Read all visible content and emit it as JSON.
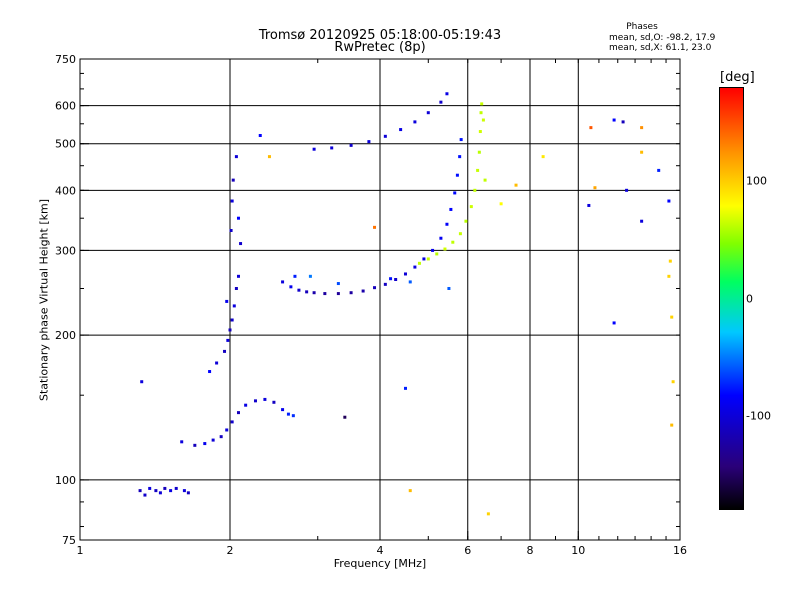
{
  "chart_data": {
    "type": "scatter",
    "title": "Tromsø 20120925 05:18:00-05:19:43",
    "subtitle": "RwPretec (8p)",
    "xlabel": "Frequency [MHz]",
    "ylabel": "Stationary phase Virtual Height [km]",
    "x_scale": "log",
    "y_scale": "log",
    "xlim": [
      1,
      16
    ],
    "ylim": [
      75,
      750
    ],
    "x_ticks": [
      1,
      2,
      4,
      6,
      8,
      10,
      16
    ],
    "x_tick_labels": [
      "1",
      "2",
      "4",
      "6",
      "8",
      "10",
      "16"
    ],
    "y_ticks": [
      75,
      100,
      200,
      300,
      400,
      500,
      600,
      750
    ],
    "y_tick_labels": [
      "75",
      "100",
      "200",
      "300",
      "400",
      "500",
      "600",
      "750"
    ],
    "grid": true,
    "phases_summary": {
      "heading": "Phases",
      "o_mode": "mean, sd,O: -98.2, 17.9",
      "x_mode": "mean, sd,X: 61.1, 23.0"
    },
    "colorbar": {
      "label": "[deg]",
      "range": [
        -180,
        180
      ],
      "ticks": [
        100,
        0,
        -100
      ],
      "tick_labels": [
        "100",
        "0",
        "-100"
      ]
    },
    "series": [
      {
        "trace": "low_layer",
        "points": [
          [
            1.32,
            95,
            -120
          ],
          [
            1.35,
            93,
            -115
          ],
          [
            1.38,
            96,
            -110
          ],
          [
            1.42,
            95,
            -118
          ],
          [
            1.45,
            94,
            -112
          ],
          [
            1.48,
            96,
            -120
          ],
          [
            1.52,
            95,
            -108
          ],
          [
            1.56,
            96,
            -115
          ],
          [
            1.62,
            95,
            -110
          ],
          [
            1.65,
            94,
            -118
          ]
        ]
      },
      {
        "trace": "E_region",
        "points": [
          [
            1.6,
            120,
            -110
          ],
          [
            1.7,
            118,
            -120
          ],
          [
            1.78,
            119,
            -105
          ],
          [
            1.85,
            121,
            -112
          ],
          [
            1.92,
            123,
            -118
          ],
          [
            1.97,
            127,
            -110
          ],
          [
            2.02,
            132,
            -115
          ],
          [
            2.08,
            138,
            -120
          ],
          [
            2.15,
            143,
            -108
          ],
          [
            2.25,
            146,
            -115
          ],
          [
            2.35,
            147,
            -110
          ],
          [
            2.45,
            145,
            -118
          ],
          [
            2.55,
            140,
            -105
          ],
          [
            2.62,
            137,
            -90
          ],
          [
            2.68,
            136,
            -85
          ],
          [
            1.33,
            160,
            -110
          ],
          [
            1.82,
            168,
            -100
          ],
          [
            1.88,
            175,
            -112
          ],
          [
            1.95,
            185,
            -118
          ],
          [
            1.98,
            195,
            -110
          ],
          [
            2.0,
            205,
            -120
          ],
          [
            2.02,
            215,
            -115
          ],
          [
            2.04,
            230,
            -110
          ],
          [
            2.06,
            250,
            -118
          ],
          [
            2.08,
            265,
            -112
          ],
          [
            1.97,
            235,
            -105
          ],
          [
            2.01,
            330,
            -115
          ],
          [
            2.02,
            380,
            -110
          ],
          [
            2.03,
            420,
            -120
          ],
          [
            2.06,
            470,
            -112
          ],
          [
            2.08,
            350,
            -100
          ],
          [
            2.1,
            310,
            -115
          ]
        ]
      },
      {
        "trace": "F_layer_O",
        "points": [
          [
            2.55,
            258,
            -110
          ],
          [
            2.65,
            252,
            -105
          ],
          [
            2.75,
            248,
            -115
          ],
          [
            2.85,
            246,
            -120
          ],
          [
            2.95,
            245,
            -125
          ],
          [
            3.1,
            244,
            -128
          ],
          [
            3.3,
            244,
            -130
          ],
          [
            3.5,
            245,
            -128
          ],
          [
            3.7,
            247,
            -125
          ],
          [
            3.9,
            251,
            -120
          ],
          [
            4.1,
            255,
            -118
          ],
          [
            4.3,
            261,
            -115
          ],
          [
            4.5,
            268,
            -112
          ],
          [
            4.7,
            277,
            -110
          ],
          [
            4.9,
            288,
            -108
          ],
          [
            5.1,
            300,
            -106
          ],
          [
            5.3,
            318,
            -104
          ],
          [
            5.45,
            340,
            -102
          ],
          [
            5.55,
            365,
            -100
          ],
          [
            5.65,
            395,
            -98
          ],
          [
            5.72,
            430,
            -96
          ],
          [
            5.78,
            470,
            -95
          ],
          [
            5.82,
            510,
            -94
          ],
          [
            2.9,
            265,
            -60
          ],
          [
            3.3,
            256,
            -75
          ],
          [
            2.7,
            265,
            -90
          ],
          [
            4.2,
            262,
            -95
          ],
          [
            4.6,
            258,
            -70
          ]
        ]
      },
      {
        "trace": "F_layer_O_upper",
        "points": [
          [
            2.95,
            487,
            -110
          ],
          [
            3.2,
            490,
            -112
          ],
          [
            3.5,
            496,
            -115
          ],
          [
            3.8,
            505,
            -110
          ],
          [
            4.1,
            518,
            -112
          ],
          [
            4.4,
            535,
            -108
          ],
          [
            4.7,
            555,
            -110
          ],
          [
            5.0,
            580,
            -112
          ],
          [
            5.3,
            610,
            -115
          ],
          [
            5.45,
            635,
            -108
          ]
        ]
      },
      {
        "trace": "F_layer_X",
        "points": [
          [
            4.8,
            282,
            60
          ],
          [
            5.0,
            288,
            62
          ],
          [
            5.2,
            295,
            58
          ],
          [
            5.4,
            302,
            65
          ],
          [
            5.6,
            312,
            60
          ],
          [
            5.8,
            325,
            62
          ],
          [
            5.95,
            345,
            58
          ],
          [
            6.1,
            370,
            64
          ],
          [
            6.2,
            400,
            60
          ],
          [
            6.28,
            440,
            62
          ],
          [
            6.33,
            480,
            58
          ],
          [
            6.36,
            530,
            65
          ],
          [
            6.38,
            580,
            60
          ],
          [
            6.4,
            605,
            62
          ],
          [
            6.45,
            560,
            64
          ],
          [
            6.5,
            420,
            60
          ]
        ]
      },
      {
        "trace": "scatter_misc",
        "points": [
          [
            2.3,
            520,
            -100
          ],
          [
            2.4,
            470,
            110
          ],
          [
            3.4,
            135,
            -150
          ],
          [
            3.9,
            335,
            140
          ],
          [
            4.5,
            155,
            -90
          ],
          [
            4.6,
            95,
            110
          ],
          [
            5.5,
            250,
            -70
          ],
          [
            6.6,
            85,
            100
          ],
          [
            7.0,
            375,
            80
          ],
          [
            7.5,
            410,
            110
          ],
          [
            8.5,
            470,
            90
          ],
          [
            10.6,
            540,
            150
          ],
          [
            10.8,
            405,
            120
          ],
          [
            10.5,
            372,
            -110
          ],
          [
            11.8,
            560,
            -100
          ],
          [
            12.3,
            555,
            -120
          ],
          [
            13.4,
            540,
            130
          ],
          [
            13.4,
            480,
            110
          ],
          [
            11.8,
            212,
            -100
          ],
          [
            12.5,
            400,
            -110
          ],
          [
            13.4,
            345,
            -110
          ],
          [
            14.5,
            440,
            -90
          ],
          [
            15.2,
            380,
            -100
          ],
          [
            15.3,
            285,
            100
          ],
          [
            15.2,
            265,
            100
          ],
          [
            15.4,
            218,
            100
          ],
          [
            15.5,
            160,
            100
          ],
          [
            15.4,
            130,
            110
          ]
        ]
      }
    ]
  }
}
